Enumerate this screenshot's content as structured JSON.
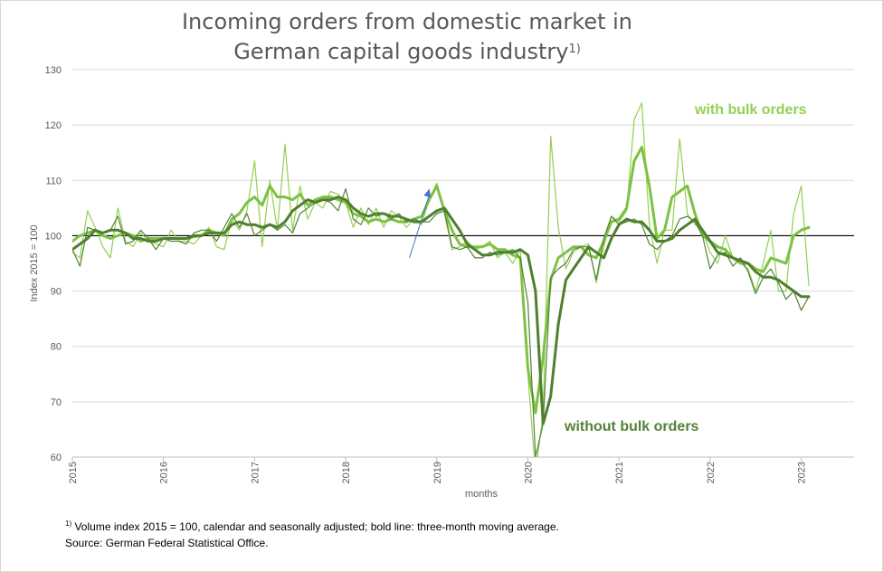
{
  "title": {
    "line1": "Incoming orders from domestic market in",
    "line2": "German capital goods industry",
    "marker": "1)"
  },
  "footnote": {
    "marker": "1)",
    "line1": "Volume index 2015 = 100,  calendar and seasonally adjusted; bold line: three-month moving average.",
    "line2": "Source: German Federal Statistical Office."
  },
  "colors": {
    "with_bulk": "#92d050",
    "with_bulk_ma": "#7dc242",
    "without_bulk": "#548235",
    "without_bulk_ma": "#4f7f2f",
    "reference": "#000000",
    "arrow": "#4472c4",
    "grid": "#d9d9d9"
  },
  "chart_data": {
    "type": "line",
    "title": "Incoming orders from domestic market in German capital goods industry",
    "xlabel": "months",
    "ylabel": "Index 2015 = 100",
    "ylim": [
      60,
      130
    ],
    "yticks": [
      60,
      70,
      80,
      90,
      100,
      110,
      120,
      130
    ],
    "xlim": [
      2015.0,
      2023.58
    ],
    "xticks": [
      "2015",
      "2016",
      "2017",
      "2018",
      "2019",
      "2020",
      "2021",
      "2022",
      "2023"
    ],
    "grid": true,
    "reference_line": 100,
    "annotations": {
      "with_bulk": "with bulk orders",
      "without_bulk": "without bulk orders"
    },
    "arrow": {
      "from": [
        2018.7,
        96
      ],
      "to": [
        2018.92,
        108.5
      ]
    },
    "x_start": "2015-01",
    "series": [
      {
        "name": "with bulk orders",
        "style": "thin",
        "values": [
          97,
          96,
          104.5,
          101.5,
          98,
          96,
          105,
          99,
          98,
          100.5,
          99,
          98.5,
          98,
          101,
          99,
          99,
          98.5,
          100,
          101.5,
          98,
          97.5,
          103,
          101,
          104.5,
          113.5,
          98,
          110,
          101,
          116.5,
          101,
          109,
          103,
          106,
          105,
          108,
          107.5,
          106,
          101.5,
          105,
          102,
          105,
          101.5,
          104.5,
          103.5,
          101.5,
          103,
          102,
          106.5,
          109.5,
          104,
          97.5,
          98,
          99,
          97.5,
          98,
          99,
          96,
          97,
          95,
          97.5,
          75,
          57,
          68,
          118,
          101.5,
          94,
          97,
          98,
          98.5,
          91.5,
          98,
          103.5,
          102.5,
          104.5,
          121,
          124,
          102,
          95,
          101,
          101,
          117.5,
          104,
          102,
          101,
          97,
          95,
          100,
          96,
          95,
          94,
          90,
          95,
          101,
          90,
          90,
          104,
          109,
          91
        ]
      },
      {
        "name": "with bulk orders (three-month moving average)",
        "style": "bold",
        "values": [
          99,
          100,
          100.5,
          101,
          100,
          99.5,
          100,
          100.5,
          100,
          99,
          99.5,
          99.5,
          99.5,
          99.5,
          99.5,
          99.5,
          99.8,
          100,
          101,
          100.5,
          100,
          103,
          104,
          106,
          107,
          105.5,
          109,
          107,
          107,
          106.5,
          107.5,
          105.5,
          106.5,
          107,
          107,
          106.5,
          106,
          104,
          103.5,
          102.5,
          103,
          102.5,
          103,
          102.5,
          102.5,
          103,
          103.5,
          106.5,
          109,
          104.5,
          101,
          98.5,
          98,
          98,
          98,
          98.5,
          97.5,
          97.5,
          96.5,
          96,
          76,
          68,
          78,
          92,
          96,
          97,
          98,
          98,
          96.5,
          96,
          99,
          102.5,
          103,
          105,
          113.5,
          116,
          109,
          99.5,
          101,
          107,
          108,
          109,
          104,
          100,
          99,
          98,
          97.5,
          96,
          95,
          95,
          94,
          93.5,
          96,
          95.5,
          95,
          100,
          101,
          101.5
        ]
      },
      {
        "name": "without bulk orders",
        "style": "thin",
        "values": [
          97.5,
          94.5,
          101.5,
          101,
          100.5,
          101,
          103.5,
          98.5,
          99,
          101,
          99.5,
          97.5,
          99.5,
          99,
          99,
          98.5,
          100.5,
          101,
          101,
          99,
          101.5,
          104,
          101.5,
          104,
          100,
          101,
          102,
          101,
          102,
          100.5,
          104,
          105,
          106,
          106.5,
          106,
          104.5,
          108.5,
          103,
          102,
          105,
          103.5,
          104,
          103,
          104,
          102.5,
          103,
          102.5,
          102.5,
          104,
          104.5,
          98,
          97.5,
          98,
          96,
          96,
          97,
          96.5,
          97,
          97.5,
          96,
          88,
          60,
          66,
          92.5,
          94,
          95,
          97.5,
          98,
          98,
          92,
          99.5,
          103.5,
          102,
          102.5,
          103,
          102,
          98.5,
          97.5,
          99,
          100,
          103,
          103.5,
          102.5,
          100,
          94,
          96.5,
          97,
          94.5,
          96,
          93.5,
          89.5,
          92.5,
          94,
          91.5,
          88.5,
          90,
          86.5,
          89
        ]
      },
      {
        "name": "without bulk orders (three-month moving average)",
        "style": "bold",
        "values": [
          97.5,
          98.5,
          99.5,
          101,
          100.5,
          101,
          101,
          100.5,
          99.5,
          99.5,
          99,
          99,
          99.5,
          99.5,
          99.5,
          99.5,
          100,
          100,
          100.5,
          100.5,
          100.5,
          102,
          102.5,
          102,
          102,
          101.5,
          102,
          101.5,
          102.5,
          104.5,
          105.5,
          106.5,
          106,
          106.5,
          106.5,
          107,
          106.5,
          105,
          104,
          103.5,
          104,
          104,
          103.5,
          103.5,
          103,
          102.5,
          102.5,
          103.5,
          104.5,
          105,
          103,
          101,
          98.5,
          97.5,
          96.5,
          96.5,
          97,
          97,
          97,
          97.5,
          96.5,
          90,
          66,
          71,
          84,
          92,
          94,
          96,
          98,
          97,
          96,
          99.5,
          102,
          103,
          102.5,
          102.5,
          101,
          99,
          99,
          99.5,
          101,
          102,
          103,
          101,
          99,
          97,
          96.5,
          96,
          95.5,
          95,
          93.5,
          92.5,
          92.5,
          92,
          91,
          90,
          89,
          89
        ]
      }
    ]
  }
}
